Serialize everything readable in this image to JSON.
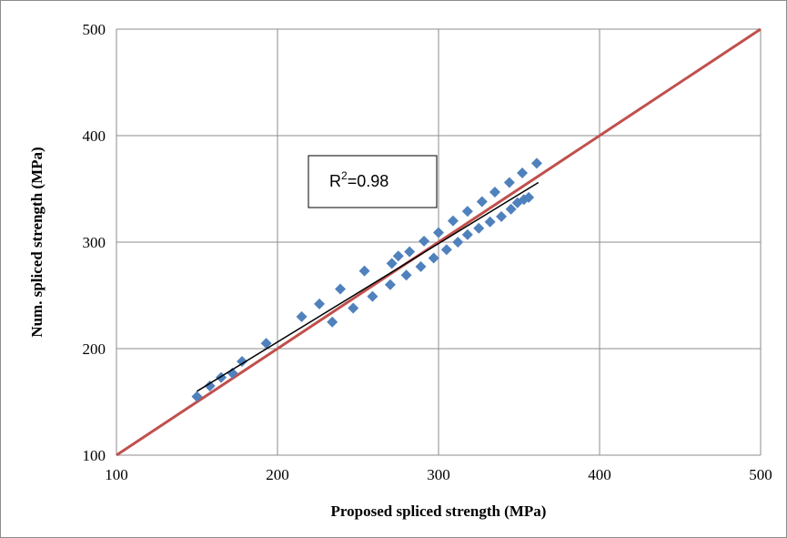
{
  "chart_data": {
    "type": "scatter",
    "xlabel": "Proposed spliced strength (MPa)",
    "ylabel": "Num. spliced strength (MPa)",
    "xlim": [
      100,
      500
    ],
    "ylim": [
      100,
      500
    ],
    "xticks": [
      "100",
      "200",
      "300",
      "400",
      "500"
    ],
    "yticks": [
      "100",
      "200",
      "300",
      "400",
      "500"
    ],
    "grid": true,
    "legend": "none",
    "colors": {
      "points": "#4f81bd",
      "equality_line": "#c0504d",
      "fit_line": "#000000",
      "grid": "#8c8c8c"
    },
    "annotation": {
      "base": "R",
      "superscript": "2",
      "rest": "=0.98"
    },
    "series": [
      {
        "marker": "diamond",
        "points": [
          [
            150,
            155
          ],
          [
            158,
            165
          ],
          [
            165,
            173
          ],
          [
            172,
            177
          ],
          [
            178,
            188
          ],
          [
            193,
            205
          ],
          [
            215,
            230
          ],
          [
            226,
            242
          ],
          [
            234,
            225
          ],
          [
            239,
            256
          ],
          [
            247,
            238
          ],
          [
            254,
            273
          ],
          [
            259,
            249
          ],
          [
            270,
            260
          ],
          [
            271,
            280
          ],
          [
            275,
            287
          ],
          [
            280,
            269
          ],
          [
            282,
            291
          ],
          [
            289,
            277
          ],
          [
            291,
            301
          ],
          [
            297,
            285
          ],
          [
            300,
            309
          ],
          [
            305,
            293
          ],
          [
            309,
            320
          ],
          [
            312,
            300
          ],
          [
            318,
            307
          ],
          [
            318,
            329
          ],
          [
            325,
            313
          ],
          [
            327,
            338
          ],
          [
            332,
            319
          ],
          [
            335,
            347
          ],
          [
            339,
            324
          ],
          [
            344,
            356
          ],
          [
            345,
            331
          ],
          [
            349,
            337
          ],
          [
            352,
            365
          ],
          [
            353,
            340
          ],
          [
            356,
            342
          ],
          [
            361,
            374
          ]
        ]
      }
    ],
    "equality_line": [
      [
        100,
        100
      ],
      [
        500,
        500
      ]
    ],
    "fit_line": [
      [
        150,
        160
      ],
      [
        362,
        356
      ]
    ]
  }
}
